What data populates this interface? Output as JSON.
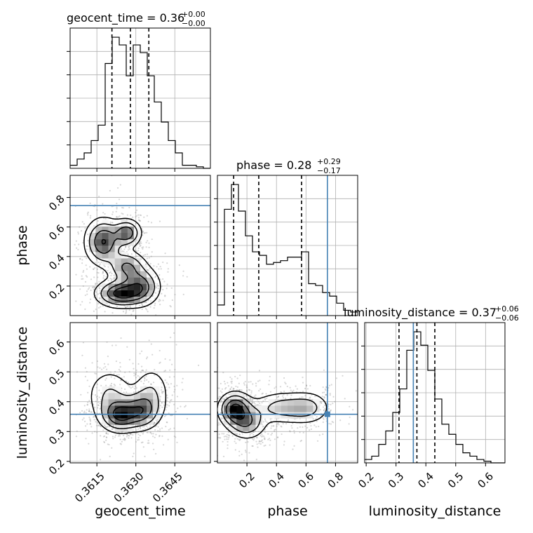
{
  "colors": {
    "truth": "#4682b4",
    "line": "#000000",
    "grid": "#b0b0b0",
    "scatter": "#8c8c8c"
  },
  "chart_data": {
    "type": "corner",
    "parameters": [
      "geocent_time",
      "phase",
      "luminosity_distance"
    ],
    "ranges": {
      "geocent_time": [
        0.36047,
        0.36587
      ],
      "phase": [
        0.0,
        0.95
      ],
      "luminosity_distance": [
        0.195,
        0.665
      ]
    },
    "truths": {
      "geocent_time": null,
      "phase": 0.745,
      "luminosity_distance": 0.358
    },
    "titles": [
      {
        "param": "geocent_time",
        "prefix": "geocent_time = ",
        "median": "0.36",
        "plus": "+0.00",
        "minus": "−0.00"
      },
      {
        "param": "phase",
        "prefix": "phase = ",
        "median": "0.28",
        "plus": "+0.29",
        "minus": "−0.17"
      },
      {
        "param": "luminosity_distance",
        "prefix": "luminosity_distance = ",
        "median": "0.37",
        "plus": "+0.06",
        "minus": "−0.06"
      }
    ],
    "axis_labels": {
      "x": [
        "geocent_time",
        "phase",
        "luminosity_distance"
      ],
      "y": [
        "phase",
        "luminosity_distance"
      ]
    },
    "ticks": {
      "geocent_time": {
        "values": [
          0.3615,
          0.363,
          0.3645
        ],
        "labels": [
          "0.3615",
          "0.3630",
          "0.3645"
        ]
      },
      "phase_x": {
        "values": [
          0.2,
          0.4,
          0.6,
          0.8
        ],
        "labels": [
          "0.2",
          "0.4",
          "0.6",
          "0.8"
        ]
      },
      "phase_y": {
        "values": [
          0.2,
          0.4,
          0.6,
          0.8
        ],
        "labels": [
          "0.2",
          "0.4",
          "0.6",
          "0.8"
        ]
      },
      "luminosity_distance_x": {
        "values": [
          0.2,
          0.3,
          0.4,
          0.5,
          0.6
        ],
        "labels": [
          "0.2",
          "0.3",
          "0.4",
          "0.5",
          "0.6"
        ]
      },
      "luminosity_distance_y": {
        "values": [
          0.2,
          0.3,
          0.4,
          0.5,
          0.6
        ],
        "labels": [
          "0.2",
          "0.3",
          "0.4",
          "0.5",
          "0.6"
        ]
      }
    },
    "quantiles": {
      "geocent_time": [
        0.36208,
        0.36279,
        0.3635
      ],
      "phase": [
        0.11,
        0.28,
        0.57
      ],
      "luminosity_distance": [
        0.31,
        0.37,
        0.43
      ]
    },
    "histograms": {
      "geocent_time": {
        "edges": [
          0.36047,
          0.36074,
          0.36101,
          0.36128,
          0.36155,
          0.36182,
          0.36209,
          0.36236,
          0.36263,
          0.3629,
          0.36317,
          0.36344,
          0.36371,
          0.36398,
          0.36425,
          0.36452,
          0.36479,
          0.36506,
          0.36533,
          0.3656,
          0.36587
        ],
        "counts": [
          2,
          6,
          10,
          18,
          28,
          68,
          85,
          80,
          60,
          80,
          75,
          60,
          43,
          30,
          18,
          10,
          2,
          2,
          1,
          0
        ]
      },
      "phase": {
        "edges": [
          0.0,
          0.0475,
          0.095,
          0.1425,
          0.19,
          0.2375,
          0.285,
          0.3325,
          0.38,
          0.4275,
          0.475,
          0.5225,
          0.57,
          0.6175,
          0.665,
          0.7125,
          0.76,
          0.8075,
          0.855,
          0.9025,
          0.95
        ],
        "counts": [
          6,
          60,
          74,
          59,
          45,
          36,
          34,
          29,
          30,
          31,
          33,
          33,
          36,
          18,
          17,
          13,
          11,
          7,
          3,
          2
        ]
      },
      "luminosity_distance": {
        "edges": [
          0.195,
          0.2185,
          0.242,
          0.2655,
          0.289,
          0.3125,
          0.336,
          0.3595,
          0.383,
          0.4065,
          0.43,
          0.4535,
          0.477,
          0.5005,
          0.524,
          0.5475,
          0.571,
          0.5945,
          0.618,
          0.6415,
          0.665
        ],
        "counts": [
          2,
          4,
          11,
          19,
          30,
          44,
          67,
          78,
          70,
          55,
          38,
          23,
          17,
          11,
          6,
          4,
          2,
          1,
          0,
          0
        ]
      }
    },
    "density_2d": {
      "phase_vs_geocent_time": {
        "description_free": true,
        "components": [
          {
            "x": 0.36175,
            "y": 0.5,
            "sx": 0.00038,
            "sy": 0.085,
            "w": 1.0
          },
          {
            "x": 0.36265,
            "y": 0.56,
            "sx": 0.0003,
            "sy": 0.05,
            "w": 0.9
          },
          {
            "x": 0.36265,
            "y": 0.33,
            "sx": 0.0004,
            "sy": 0.06,
            "w": 0.7
          },
          {
            "x": 0.3624,
            "y": 0.15,
            "sx": 0.0005,
            "sy": 0.05,
            "w": 1.1
          },
          {
            "x": 0.3632,
            "y": 0.2,
            "sx": 0.0004,
            "sy": 0.07,
            "w": 0.8
          }
        ]
      },
      "luminosity_distance_vs_geocent_time": {
        "components": [
          {
            "x": 0.3624,
            "y": 0.355,
            "sx": 0.0004,
            "sy": 0.03,
            "w": 1.0
          },
          {
            "x": 0.3632,
            "y": 0.37,
            "sx": 0.0004,
            "sy": 0.035,
            "w": 0.8
          },
          {
            "x": 0.362,
            "y": 0.42,
            "sx": 0.0005,
            "sy": 0.05,
            "w": 0.4
          },
          {
            "x": 0.3636,
            "y": 0.43,
            "sx": 0.0004,
            "sy": 0.05,
            "w": 0.35
          }
        ]
      },
      "luminosity_distance_vs_phase": {
        "components": [
          {
            "x": 0.12,
            "y": 0.375,
            "sx": 0.06,
            "sy": 0.03,
            "w": 1.0
          },
          {
            "x": 0.2,
            "y": 0.33,
            "sx": 0.07,
            "sy": 0.03,
            "w": 0.6
          },
          {
            "x": 0.45,
            "y": 0.38,
            "sx": 0.13,
            "sy": 0.03,
            "w": 0.45
          },
          {
            "x": 0.62,
            "y": 0.38,
            "sx": 0.08,
            "sy": 0.03,
            "w": 0.3
          }
        ]
      }
    }
  }
}
